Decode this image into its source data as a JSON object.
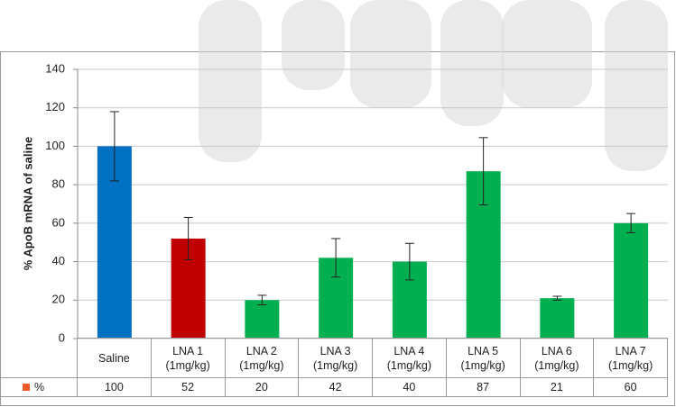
{
  "chart_data": {
    "type": "bar",
    "y_label": "% ApoB mRNA of saline",
    "categories": [
      "Saline",
      "LNA 1\n(1mg/kg)",
      "LNA 2\n(1mg/kg)",
      "LNA 3\n(1mg/kg)",
      "LNA 4\n(1mg/kg)",
      "LNA 5\n(1mg/kg)",
      "LNA 6\n(1mg/kg)",
      "LNA 7\n(1mg/kg)"
    ],
    "series": [
      {
        "name": "%",
        "color": "#f05a28",
        "values": [
          100,
          52,
          20,
          42,
          40,
          87,
          21,
          60
        ],
        "errors": [
          18,
          11,
          2.5,
          10,
          9.5,
          17.5,
          1,
          5
        ],
        "bar_colors": [
          "#0070c0",
          "#c00000",
          "#00b050",
          "#00b050",
          "#00b050",
          "#00b050",
          "#00b050",
          "#00b050"
        ]
      }
    ],
    "ylim": [
      0,
      140
    ],
    "yticks": [
      0,
      20,
      40,
      60,
      80,
      100,
      120,
      140
    ],
    "grid": true,
    "data_table": true
  }
}
